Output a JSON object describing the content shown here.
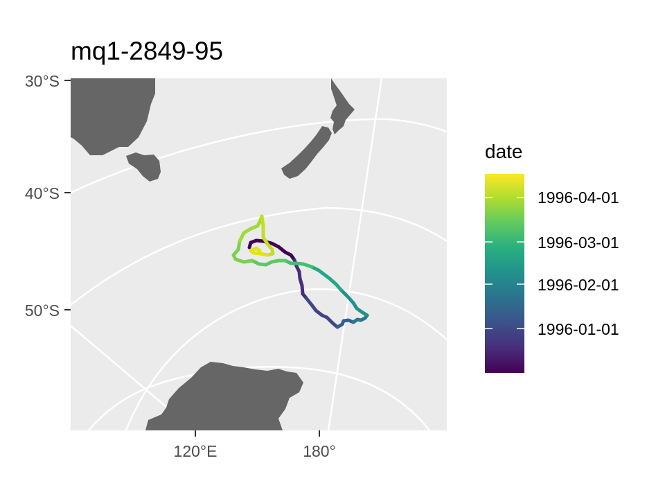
{
  "title": "mq1-2849-95",
  "chart_data": {
    "type": "map-track",
    "projection": "polar stereographic (south)",
    "y_axis": {
      "ticks": [
        "30°S",
        "40°S",
        "50°S"
      ]
    },
    "x_axis": {
      "ticks": [
        "120°E",
        "180°"
      ]
    },
    "legend": {
      "title": "date",
      "placement": "right",
      "labels": [
        "1996-04-01",
        "1996-03-01",
        "1996-02-01",
        "1996-01-01"
      ],
      "colormap": "viridis"
    },
    "track": {
      "start_date": "1995-12-12",
      "end_date": "1996-04-20",
      "description_of_path": "starts near 44°S 164°E, heads southeast to ~52°S 175°E, east to ~51°S 176°W, then back northwest to ~44°S 155°E, north to ~42°S 162°E and ends near 45°S 162°E"
    },
    "land_color": "#666666",
    "ocean_color": "#ebebeb",
    "graticule_color": "#ffffff"
  }
}
